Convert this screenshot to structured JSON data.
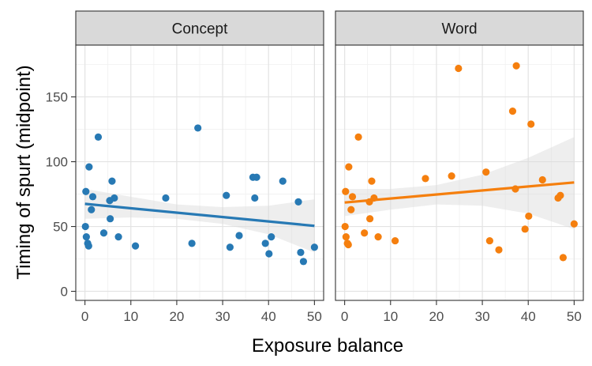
{
  "chart_data": {
    "type": "scatter",
    "xlabel": "Exposure balance",
    "ylabel": "Timing of spurt (midpoint)",
    "xlim": [
      -2,
      52
    ],
    "ylim": [
      -7,
      190
    ],
    "x_ticks": [
      0,
      10,
      20,
      30,
      40,
      50
    ],
    "y_ticks": [
      0,
      50,
      100,
      150
    ],
    "x_tick_labels": [
      "0",
      "10",
      "20",
      "30",
      "40",
      "50"
    ],
    "y_tick_labels": [
      "0",
      "50",
      "100",
      "150"
    ],
    "grid": true,
    "legend": "none",
    "facets": [
      {
        "label": "Concept",
        "color": "#2779b4",
        "points": [
          [
            0.2,
            77
          ],
          [
            0.1,
            50
          ],
          [
            0.3,
            42
          ],
          [
            0.6,
            37
          ],
          [
            0.8,
            35
          ],
          [
            0.9,
            96
          ],
          [
            1.7,
            73
          ],
          [
            1.4,
            63
          ],
          [
            2.9,
            119
          ],
          [
            4.1,
            45
          ],
          [
            5.4,
            70
          ],
          [
            5.5,
            56
          ],
          [
            5.9,
            85
          ],
          [
            6.4,
            72
          ],
          [
            7.3,
            42
          ],
          [
            11.0,
            35
          ],
          [
            17.6,
            72
          ],
          [
            23.3,
            37
          ],
          [
            24.6,
            126
          ],
          [
            30.8,
            74
          ],
          [
            31.6,
            34
          ],
          [
            33.6,
            43
          ],
          [
            36.6,
            88
          ],
          [
            37.4,
            88
          ],
          [
            37.0,
            72
          ],
          [
            39.3,
            37
          ],
          [
            40.1,
            29
          ],
          [
            40.6,
            42
          ],
          [
            43.1,
            85
          ],
          [
            46.5,
            69
          ],
          [
            47.0,
            30
          ],
          [
            47.6,
            23
          ],
          [
            50.0,
            34
          ]
        ],
        "fit": {
          "x": [
            0,
            50
          ],
          "y": [
            67.5,
            50.5
          ]
        },
        "ci_lower": [
          [
            0,
            56
          ],
          [
            10,
            57
          ],
          [
            20,
            56
          ],
          [
            30,
            52
          ],
          [
            40,
            44
          ],
          [
            50,
            30
          ]
        ],
        "ci_upper": [
          [
            0,
            79
          ],
          [
            10,
            73
          ],
          [
            20,
            67
          ],
          [
            30,
            65
          ],
          [
            40,
            66
          ],
          [
            50,
            71
          ]
        ]
      },
      {
        "label": "Word",
        "color": "#f57f0e",
        "points": [
          [
            0.2,
            77
          ],
          [
            0.1,
            50
          ],
          [
            0.3,
            42
          ],
          [
            0.6,
            37
          ],
          [
            0.8,
            36
          ],
          [
            0.9,
            96
          ],
          [
            1.7,
            73
          ],
          [
            1.4,
            63
          ],
          [
            3.0,
            119
          ],
          [
            4.3,
            45
          ],
          [
            5.4,
            69
          ],
          [
            5.5,
            56
          ],
          [
            5.9,
            85
          ],
          [
            6.4,
            72
          ],
          [
            7.3,
            42
          ],
          [
            11.0,
            39
          ],
          [
            17.6,
            87
          ],
          [
            23.3,
            89
          ],
          [
            24.8,
            172
          ],
          [
            30.8,
            92
          ],
          [
            31.6,
            39
          ],
          [
            33.6,
            32
          ],
          [
            36.6,
            139
          ],
          [
            37.4,
            174
          ],
          [
            37.2,
            79
          ],
          [
            39.3,
            48
          ],
          [
            40.1,
            58
          ],
          [
            40.6,
            129
          ],
          [
            43.1,
            86
          ],
          [
            46.5,
            72
          ],
          [
            47.0,
            74
          ],
          [
            47.6,
            26
          ],
          [
            50.0,
            52
          ]
        ],
        "fit": {
          "x": [
            0,
            50
          ],
          "y": [
            68.5,
            84
          ]
        },
        "ci_lower": [
          [
            0,
            58
          ],
          [
            10,
            63
          ],
          [
            20,
            67
          ],
          [
            30,
            66
          ],
          [
            40,
            60
          ],
          [
            50,
            48
          ]
        ],
        "ci_upper": [
          [
            0,
            79
          ],
          [
            10,
            79
          ],
          [
            20,
            82
          ],
          [
            30,
            90
          ],
          [
            40,
            103
          ],
          [
            50,
            119
          ]
        ]
      }
    ]
  }
}
